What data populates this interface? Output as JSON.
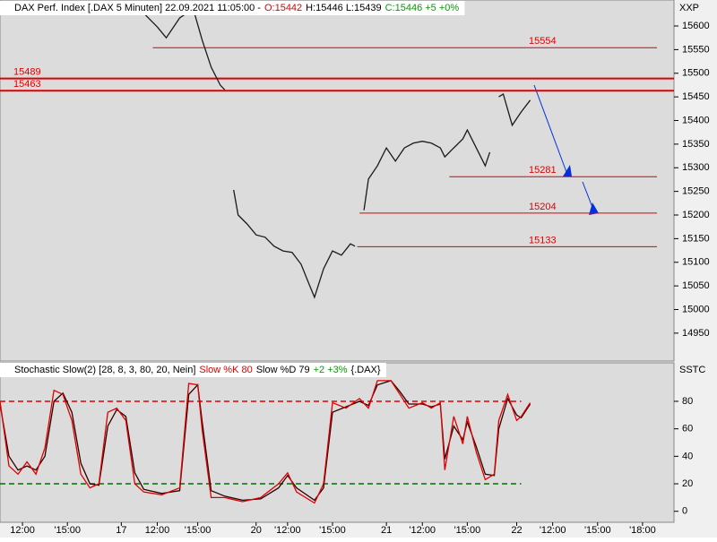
{
  "chart_data": [
    {
      "type": "line",
      "title": "DAX Perf. Index [.DAX  5 Minuten] 22.09.2021 11:05:00 -",
      "header": [
        {
          "text": "O:15442",
          "color": "#e00000"
        },
        {
          "text": "H:15446 L:15439",
          "color": "#000000"
        },
        {
          "text": "C:15446 +5 +0%",
          "color": "#00a000"
        }
      ],
      "y_label": "XXP",
      "x": [
        32,
        35,
        37,
        40,
        43,
        45,
        47,
        49,
        50,
        51,
        52,
        53,
        55,
        57,
        59,
        61,
        63,
        65,
        67,
        69,
        70,
        72,
        74,
        76,
        78,
        79,
        80,
        81,
        82,
        84,
        86,
        88,
        90,
        92,
        94,
        96,
        98,
        99,
        101,
        103,
        104,
        106,
        108,
        109,
        110,
        111,
        112,
        114,
        116,
        118
      ],
      "series": [
        {
          "name": "DAX",
          "color": "#1a1a1a",
          "values": [
            15627,
            15598,
            15575,
            15617,
            15636,
            15570,
            15513,
            15475,
            15465,
            null,
            15253,
            15200,
            15181,
            15158,
            15153,
            15134,
            15124,
            15121,
            15096,
            15049,
            15026,
            15086,
            15124,
            15115,
            15139,
            15134,
            null,
            15210,
            15276,
            15304,
            15342,
            15314,
            15342,
            15352,
            15356,
            15352,
            15342,
            15323,
            15342,
            15361,
            15380,
            15342,
            15304,
            15333,
            null,
            15450,
            15456,
            15390,
            15418,
            15443
          ]
        }
      ],
      "levels": [
        {
          "value": 15554,
          "start": 34,
          "side": "right",
          "width": 1
        },
        {
          "value": 15489,
          "start": 0,
          "side": "left",
          "width": 2
        },
        {
          "value": 15463,
          "start": 0,
          "side": "left",
          "width": 2
        },
        {
          "value": 15281,
          "start": 100,
          "side": "right",
          "width": 1
        },
        {
          "value": 15204,
          "start": 80,
          "side": "right",
          "width": 1
        },
        {
          "value": 15133,
          "start": 79.5,
          "side": "right",
          "width": 1
        }
      ],
      "level_color": "#e00000",
      "xlim": [
        0,
        150
      ],
      "ylim": [
        14891,
        15655
      ],
      "yticks": [
        14950,
        15000,
        15050,
        15100,
        15150,
        15200,
        15250,
        15300,
        15350,
        15400,
        15450,
        15500,
        15550,
        15600
      ]
    },
    {
      "type": "line",
      "title": "Stochastic Slow(2) [28, 8, 3, 80, 20, Nein]",
      "header": [
        {
          "text": "Slow %K 80",
          "color": "#e00000"
        },
        {
          "text": "Slow %D 79",
          "color": "#000000"
        },
        {
          "text": "+2 +3%",
          "color": "#00a000"
        },
        {
          "text": "{.DAX}",
          "color": "#000000"
        }
      ],
      "y_label": "SSTC",
      "x": [
        0,
        2,
        4,
        6,
        8,
        10,
        12,
        14,
        16,
        18,
        20,
        22,
        24,
        26,
        28,
        30,
        32,
        36,
        40,
        42,
        44,
        45,
        47,
        50,
        54,
        58,
        62,
        64,
        66,
        70,
        72,
        74,
        77,
        80,
        82,
        84,
        87,
        89,
        91,
        94,
        96,
        98,
        99,
        101,
        103,
        104,
        106,
        108,
        110,
        111,
        113,
        115,
        116,
        118
      ],
      "series": [
        {
          "name": "Slow %D",
          "color": "#2a0000",
          "values": [
            78,
            40,
            30,
            33,
            30,
            40,
            80,
            86,
            72,
            35,
            20,
            19,
            62,
            74,
            69,
            28,
            16,
            13,
            15,
            85,
            92,
            65,
            15,
            11,
            8,
            9,
            17,
            26,
            17,
            8,
            17,
            72,
            76,
            80,
            77,
            92,
            95,
            87,
            78,
            78,
            76,
            78,
            38,
            62,
            52,
            65,
            47,
            27,
            26,
            60,
            82,
            70,
            68,
            78
          ]
        },
        {
          "name": "Slow %K",
          "color": "#e00000",
          "values": [
            80,
            33,
            27,
            36,
            27,
            46,
            88,
            85,
            66,
            27,
            17,
            20,
            72,
            75,
            66,
            20,
            14,
            12,
            17,
            93,
            92,
            59,
            10,
            10,
            7,
            10,
            20,
            28,
            14,
            6,
            20,
            79,
            75,
            82,
            75,
            95,
            95,
            85,
            75,
            79,
            75,
            79,
            30,
            69,
            49,
            69,
            43,
            23,
            27,
            66,
            85,
            66,
            69,
            79
          ]
        }
      ],
      "levels": [
        {
          "value": 80,
          "color": "#e00000",
          "end": 116
        },
        {
          "value": 20,
          "color": "#007000",
          "end": 116
        }
      ],
      "xlim": [
        0,
        150
      ],
      "ylim": [
        -8,
        108
      ],
      "yticks": [
        0,
        20,
        40,
        60,
        80
      ],
      "xticks": [
        {
          "value": 5,
          "label": "12:00"
        },
        {
          "value": 15,
          "label": "'15:00"
        },
        {
          "value": 27,
          "label": "17"
        },
        {
          "value": 35,
          "label": "12:00"
        },
        {
          "value": 44,
          "label": "'15:00"
        },
        {
          "value": 57,
          "label": "20"
        },
        {
          "value": 64,
          "label": "'12:00"
        },
        {
          "value": 74,
          "label": "'15:00"
        },
        {
          "value": 86,
          "label": "21"
        },
        {
          "value": 94,
          "label": "'12:00"
        },
        {
          "value": 104,
          "label": "'15:00"
        },
        {
          "value": 115,
          "label": "22"
        },
        {
          "value": 123,
          "label": "'12:00"
        },
        {
          "value": 133,
          "label": "'15:00"
        },
        {
          "value": 143,
          "label": "'18:00"
        }
      ]
    }
  ]
}
